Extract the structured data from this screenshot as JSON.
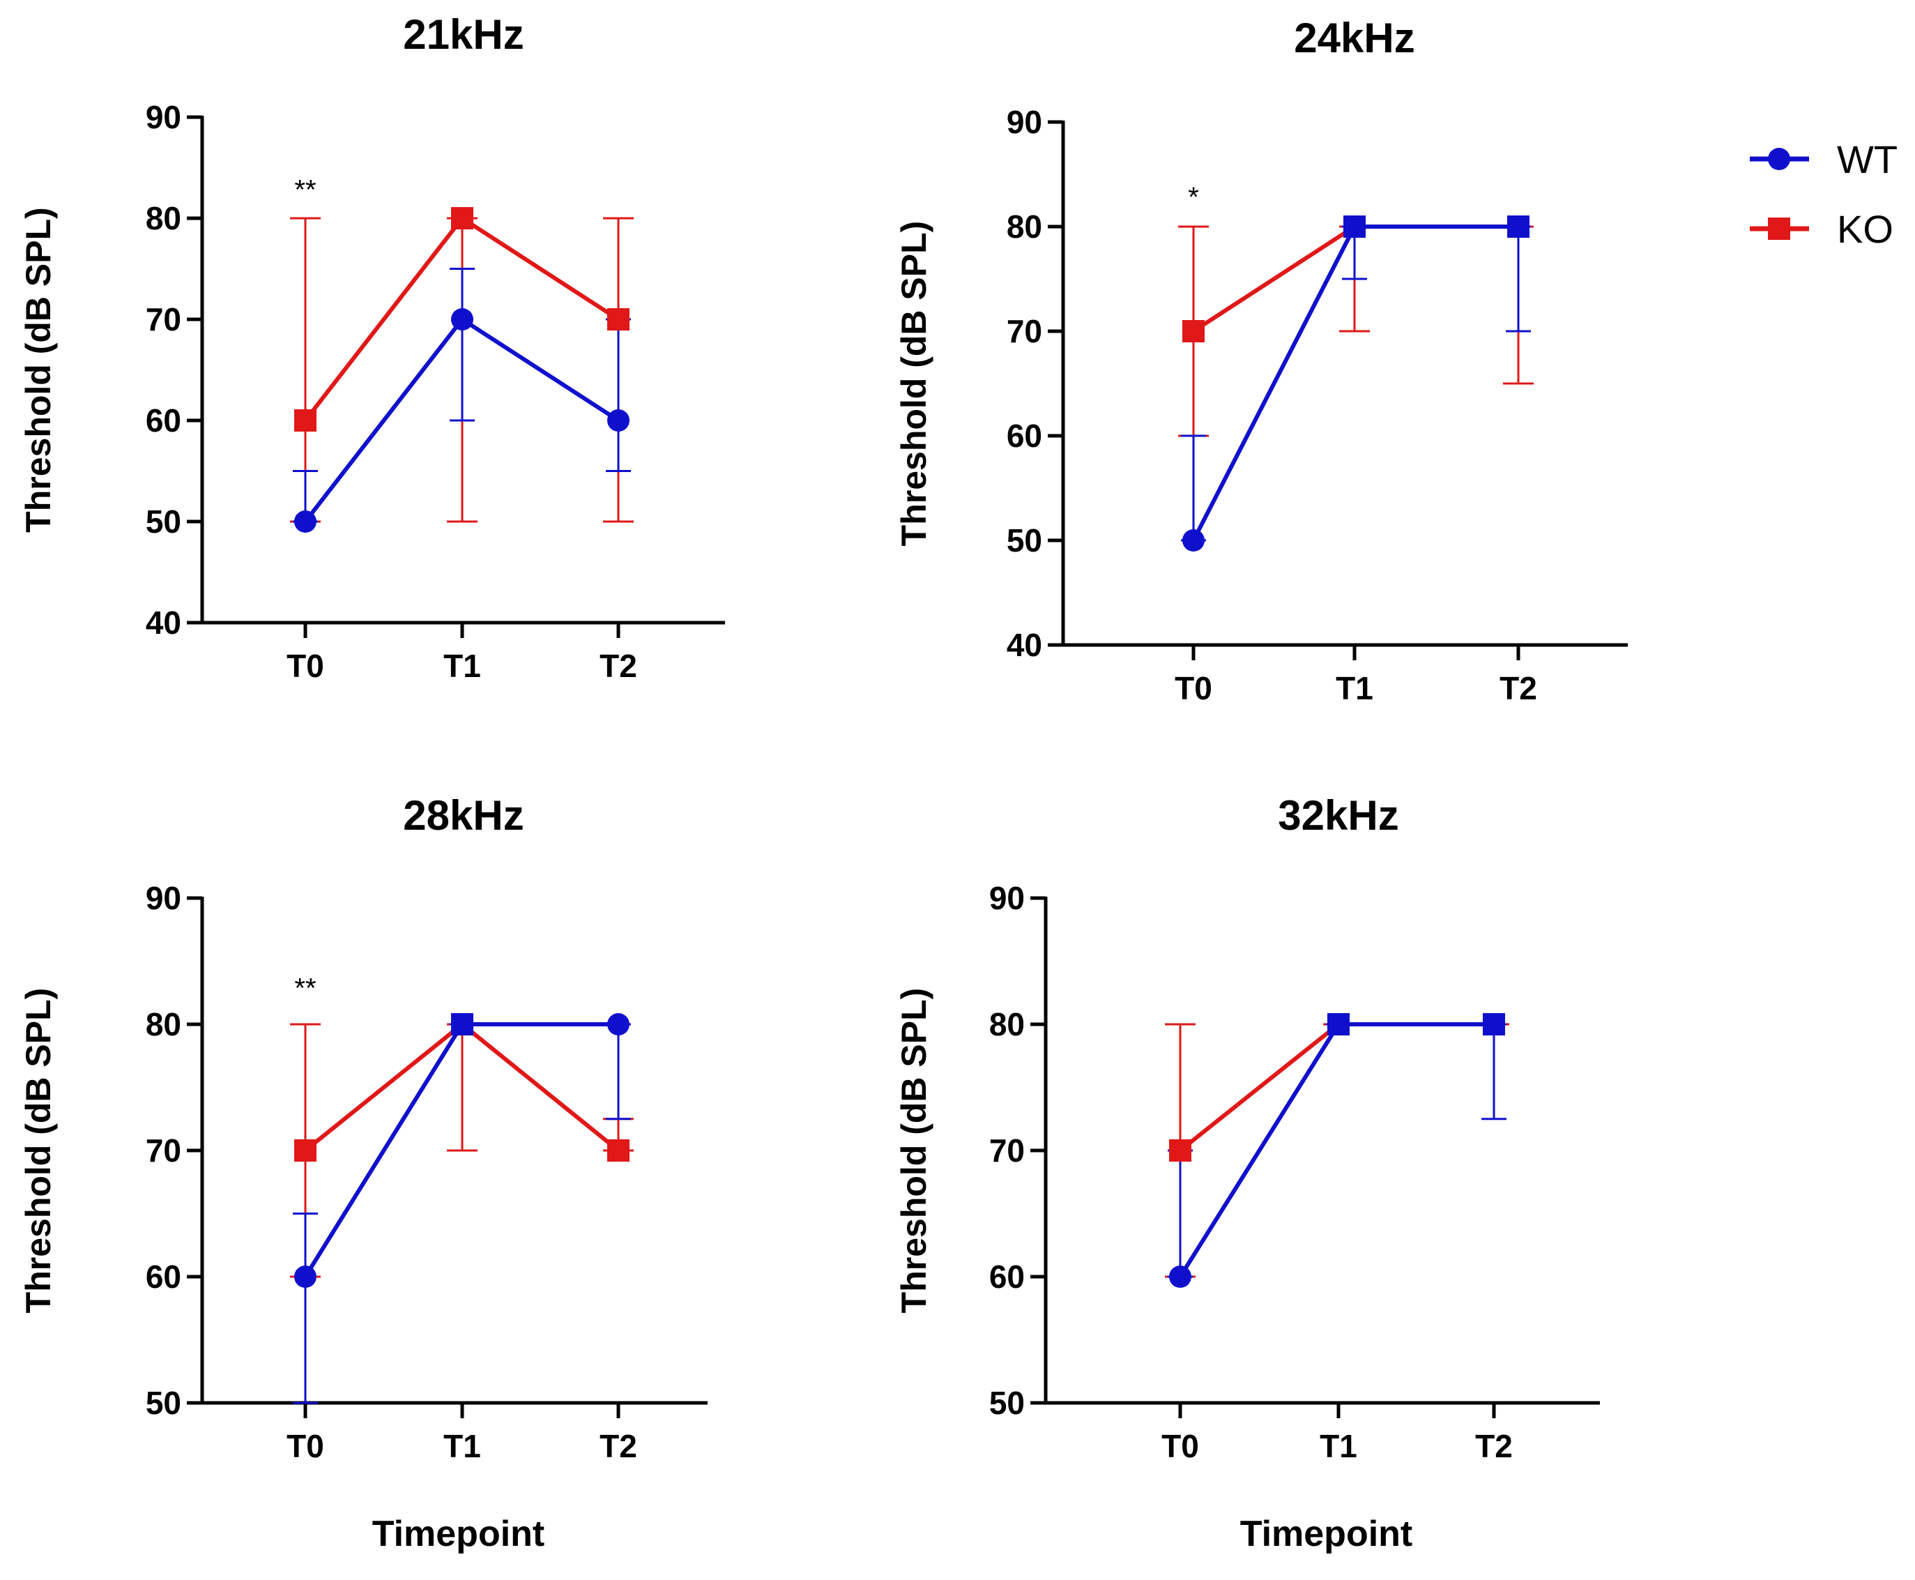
{
  "chart_data": [
    {
      "type": "line",
      "title": "21kHz",
      "xlabel": "",
      "ylabel": "Threshold (dB SPL)",
      "categories": [
        "T0",
        "T1",
        "T2"
      ],
      "ylim": [
        40,
        90
      ],
      "yticks": [
        40,
        50,
        60,
        70,
        80,
        90
      ],
      "annotations": [
        {
          "category": "T0",
          "text": "**",
          "y": 83
        }
      ],
      "series": [
        {
          "name": "WT",
          "values": [
            50,
            70,
            60
          ],
          "err_low": [
            50,
            60,
            55
          ],
          "err_high": [
            55,
            75,
            70
          ]
        },
        {
          "name": "KO",
          "values": [
            60,
            80,
            70
          ],
          "err_low": [
            50,
            50,
            50
          ],
          "err_high": [
            80,
            80,
            80
          ]
        }
      ]
    },
    {
      "type": "line",
      "title": "24kHz",
      "xlabel": "",
      "ylabel": "Threshold (dB SPL)",
      "categories": [
        "T0",
        "T1",
        "T2"
      ],
      "ylim": [
        40,
        90
      ],
      "yticks": [
        40,
        50,
        60,
        70,
        80,
        90
      ],
      "annotations": [
        {
          "category": "T0",
          "text": "*",
          "y": 83
        }
      ],
      "series": [
        {
          "name": "WT",
          "values": [
            50,
            80,
            80
          ],
          "err_low": [
            50,
            75,
            70
          ],
          "err_high": [
            60,
            80,
            80
          ]
        },
        {
          "name": "KO",
          "values": [
            70,
            80,
            80
          ],
          "err_low": [
            60,
            70,
            65
          ],
          "err_high": [
            80,
            80,
            80
          ]
        }
      ]
    },
    {
      "type": "line",
      "title": "28kHz",
      "xlabel": "Timepoint",
      "ylabel": "Threshold (dB SPL)",
      "categories": [
        "T0",
        "T1",
        "T2"
      ],
      "ylim": [
        50,
        90
      ],
      "yticks": [
        50,
        60,
        70,
        80,
        90
      ],
      "annotations": [
        {
          "category": "T0",
          "text": "**",
          "y": 83
        }
      ],
      "series": [
        {
          "name": "WT",
          "values": [
            60,
            80,
            80
          ],
          "err_low": [
            50,
            80,
            72.5
          ],
          "err_high": [
            65,
            80,
            80
          ]
        },
        {
          "name": "KO",
          "values": [
            70,
            80,
            70
          ],
          "err_low": [
            60,
            70,
            70
          ],
          "err_high": [
            80,
            80,
            72.5
          ]
        }
      ]
    },
    {
      "type": "line",
      "title": "32kHz",
      "xlabel": "Timepoint",
      "ylabel": "Threshold (dB SPL)",
      "categories": [
        "T0",
        "T1",
        "T2"
      ],
      "ylim": [
        50,
        90
      ],
      "yticks": [
        50,
        60,
        70,
        80,
        90
      ],
      "annotations": [],
      "series": [
        {
          "name": "WT",
          "values": [
            60,
            80,
            80
          ],
          "err_low": [
            60,
            80,
            72.5
          ],
          "err_high": [
            70,
            80,
            80
          ]
        },
        {
          "name": "KO",
          "values": [
            70,
            80,
            80
          ],
          "err_low": [
            60,
            80,
            80
          ],
          "err_high": [
            80,
            80,
            80
          ]
        }
      ]
    }
  ],
  "legend": {
    "position": "top-right",
    "items": [
      {
        "name": "WT",
        "color": "#1010cc",
        "marker": "circle"
      },
      {
        "name": "KO",
        "color": "#e01818",
        "marker": "square"
      }
    ]
  },
  "colors": {
    "WT": "#1010cc",
    "KO": "#e01818"
  }
}
